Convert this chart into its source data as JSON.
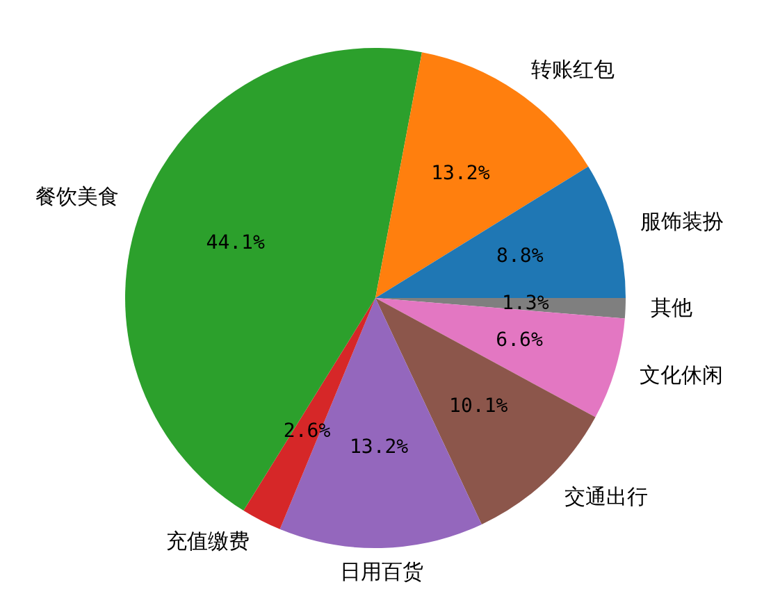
{
  "chart_data": {
    "type": "pie",
    "categories": [
      "服饰装扮",
      "转账红包",
      "餐饮美食",
      "充值缴费",
      "日用百货",
      "交通出行",
      "文化休闲",
      "其他"
    ],
    "values": [
      8.8,
      13.2,
      44.1,
      2.6,
      13.2,
      10.1,
      6.6,
      1.3
    ],
    "value_labels": [
      "8.8%",
      "13.2%",
      "44.1%",
      "2.6%",
      "13.2%",
      "10.1%",
      "6.6%",
      "1.3%"
    ],
    "colors": [
      "#1f77b4",
      "#ff7f0e",
      "#2ca02c",
      "#d62728",
      "#9467bd",
      "#8c564b",
      "#e377c2",
      "#7f7f7f"
    ]
  }
}
